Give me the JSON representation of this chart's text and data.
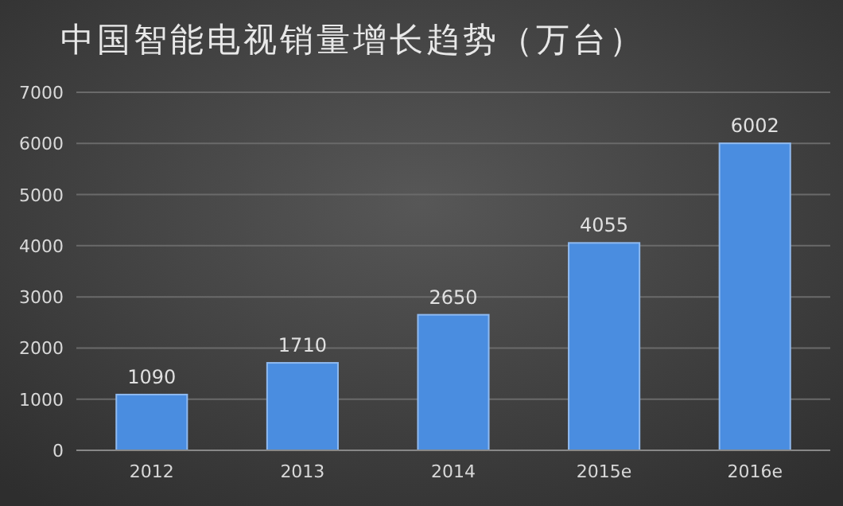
{
  "chart_data": {
    "type": "bar",
    "title": "中国智能电视销量增长趋势（万台）",
    "categories": [
      "2012",
      "2013",
      "2014",
      "2015e",
      "2016e"
    ],
    "values": [
      1090,
      1710,
      2650,
      4055,
      6002
    ],
    "color": "#4a8de0",
    "ylim": [
      0,
      7000
    ],
    "yticks": [
      0,
      1000,
      2000,
      3000,
      4000,
      5000,
      6000,
      7000
    ],
    "grid": "y",
    "data_labels": true
  }
}
